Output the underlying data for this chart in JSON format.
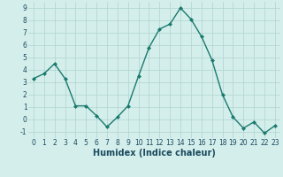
{
  "x": [
    0,
    1,
    2,
    3,
    4,
    5,
    6,
    7,
    8,
    9,
    10,
    11,
    12,
    13,
    14,
    15,
    16,
    17,
    18,
    19,
    20,
    21,
    22,
    23
  ],
  "y": [
    3.3,
    3.7,
    4.5,
    3.3,
    1.1,
    1.1,
    0.3,
    -0.6,
    0.2,
    1.1,
    3.5,
    5.8,
    7.3,
    7.7,
    9.0,
    8.1,
    6.7,
    4.8,
    2.0,
    0.2,
    -0.7,
    -0.2,
    -1.1,
    -0.5
  ],
  "line_color": "#1a7a6e",
  "marker": "D",
  "marker_size": 2,
  "bg_color": "#d4eeeb",
  "grid_color": "#b0d4d0",
  "xlabel": "Humidex (Indice chaleur)",
  "xlim": [
    -0.5,
    23.5
  ],
  "ylim": [
    -1.5,
    9.5
  ],
  "yticks": [
    -1,
    0,
    1,
    2,
    3,
    4,
    5,
    6,
    7,
    8,
    9
  ],
  "xticks": [
    0,
    1,
    2,
    3,
    4,
    5,
    6,
    7,
    8,
    9,
    10,
    11,
    12,
    13,
    14,
    15,
    16,
    17,
    18,
    19,
    20,
    21,
    22,
    23
  ],
  "tick_fontsize": 5.5,
  "xlabel_fontsize": 7,
  "label_color": "#1a4a5e"
}
